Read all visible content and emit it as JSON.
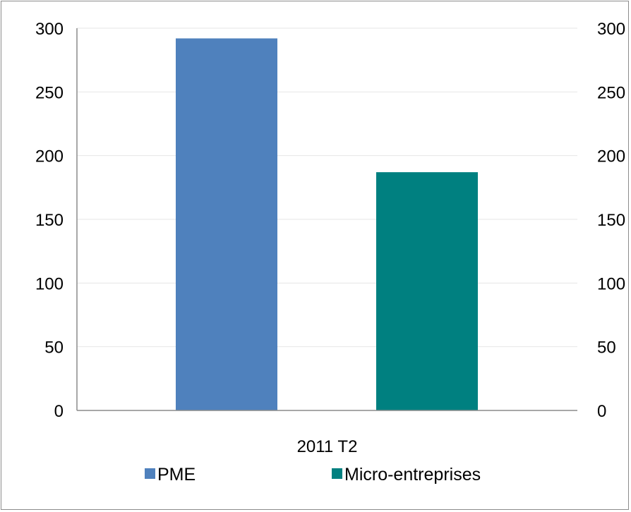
{
  "chart_data": {
    "type": "bar",
    "categories": [
      "2011 T2"
    ],
    "series": [
      {
        "name": "PME",
        "values": [
          292
        ],
        "color": "#4f81bd"
      },
      {
        "name": "Micro-entreprises",
        "values": [
          187
        ],
        "color": "#008080"
      }
    ],
    "ylim": [
      0,
      300
    ],
    "y_ticks": [
      "0",
      "50",
      "100",
      "150",
      "200",
      "250",
      "300"
    ],
    "y_ticks_right": [
      "0",
      "50",
      "100",
      "150",
      "200",
      "250",
      "300"
    ],
    "grid": true,
    "legend_position": "bottom"
  }
}
